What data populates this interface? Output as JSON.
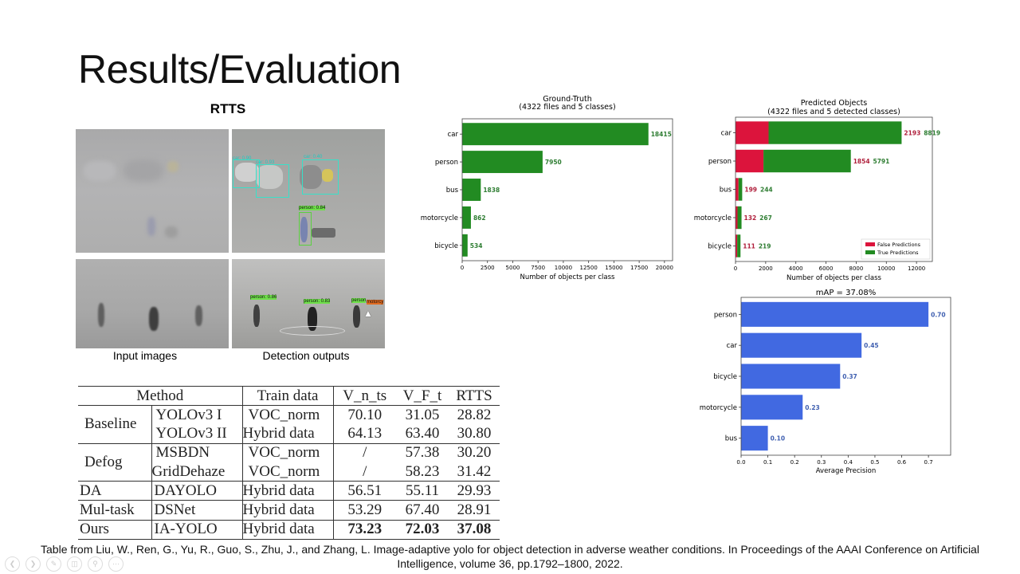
{
  "slide": {
    "title": "Results/Evaluation",
    "dataset_label": "RTTS",
    "caption_lines": [
      "Table from Liu, W., Ren, G., Yu, R., Guo, S., Zhu, J., and Zhang, L. Image-adaptive yolo for object detection in adverse weather conditions. In Proceedings of the AAAI Conference on Artificial",
      "Intelligence, volume 36, pp.1792–1800, 2022."
    ]
  },
  "images": {
    "input_caption": "Input images",
    "output_caption": "Detection outputs",
    "detections_top": [
      "car: 0.90",
      "car: 0.93",
      "car: 0.40",
      "person: 0.84"
    ],
    "detections_bottom": [
      "person: 0.86",
      "person: 0.83",
      "person",
      "motorcy"
    ]
  },
  "table": {
    "headers": [
      "Method",
      "Train data",
      "V_n_ts",
      "V_F_t",
      "RTTS"
    ],
    "rows": [
      {
        "group": "Baseline",
        "model": "YOLOv3 I",
        "train": "VOC_norm",
        "v_n_ts": "70.10",
        "v_f_t": "31.05",
        "rtts": "28.82"
      },
      {
        "group": "",
        "model": "YOLOv3 II",
        "train": "Hybrid data",
        "v_n_ts": "64.13",
        "v_f_t": "63.40",
        "rtts": "30.80"
      },
      {
        "group": "Defog",
        "model": "MSBDN",
        "train": "VOC_norm",
        "v_n_ts": "/",
        "v_f_t": "57.38",
        "rtts": "30.20"
      },
      {
        "group": "",
        "model": "GridDehaze",
        "train": "VOC_norm",
        "v_n_ts": "/",
        "v_f_t": "58.23",
        "rtts": "31.42"
      },
      {
        "group": "DA",
        "model": "DAYOLO",
        "train": "Hybrid data",
        "v_n_ts": "56.51",
        "v_f_t": "55.11",
        "rtts": "29.93"
      },
      {
        "group": "Mul-task",
        "model": "DSNet",
        "train": "Hybrid data",
        "v_n_ts": "53.29",
        "v_f_t": "67.40",
        "rtts": "28.91"
      },
      {
        "group": "Ours",
        "model": "IA-YOLO",
        "train": "Hybrid data",
        "v_n_ts": "73.23",
        "v_f_t": "72.03",
        "rtts": "37.08"
      }
    ]
  },
  "nav_icons": [
    "previous-icon",
    "next-icon",
    "pen-icon",
    "slides-icon",
    "zoom-icon",
    "more-icon"
  ],
  "chart_data": [
    {
      "type": "bar",
      "orientation": "horizontal",
      "title": "Ground-Truth",
      "subtitle": "(4322 files and 5 classes)",
      "xlabel": "Number of objects per class",
      "ylabel": "",
      "categories": [
        "car",
        "person",
        "bus",
        "motorcycle",
        "bicycle"
      ],
      "values": [
        18415,
        7950,
        1838,
        862,
        534
      ],
      "xlim": [
        0,
        20800
      ],
      "xticks": [
        0,
        2500,
        5000,
        7500,
        10000,
        12500,
        15000,
        17500,
        20000
      ],
      "grid": false,
      "color": "#228b22"
    },
    {
      "type": "bar",
      "orientation": "horizontal",
      "stacked": true,
      "title": "Predicted Objects",
      "subtitle": "(4322 files and 5 detected classes)",
      "xlabel": "Number of objects per class",
      "ylabel": "",
      "categories": [
        "car",
        "person",
        "bus",
        "motorcycle",
        "bicycle"
      ],
      "series": [
        {
          "name": "False Predictions",
          "values": [
            2193,
            1854,
            199,
            132,
            111
          ],
          "color": "#dc143c"
        },
        {
          "name": "True Predictions",
          "values": [
            8819,
            5791,
            244,
            267,
            219
          ],
          "color": "#228b22"
        }
      ],
      "xlim": [
        0,
        13050
      ],
      "xticks": [
        0,
        2000,
        4000,
        6000,
        8000,
        10000,
        12000
      ],
      "grid": false,
      "legend": "bottom-right"
    },
    {
      "type": "bar",
      "orientation": "horizontal",
      "title": "mAP = 37.08%",
      "xlabel": "Average Precision",
      "ylabel": "",
      "categories": [
        "person",
        "car",
        "bicycle",
        "motorcycle",
        "bus"
      ],
      "values": [
        0.7,
        0.45,
        0.37,
        0.23,
        0.1
      ],
      "value_labels": [
        "0.70",
        "0.45",
        "0.37",
        "0.23",
        "0.10"
      ],
      "xlim": [
        0,
        0.783
      ],
      "xticks": [
        "0.0",
        "0.1",
        "0.2",
        "0.3",
        "0.4",
        "0.5",
        "0.6",
        "0.7"
      ],
      "grid": false,
      "color": "#4169e1"
    }
  ]
}
